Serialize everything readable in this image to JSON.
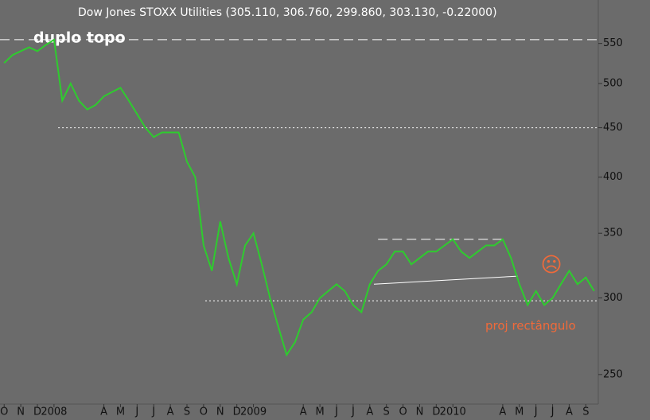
{
  "chart_data": {
    "type": "line",
    "title": "Dow Jones STOXX Utilities (305.110, 306.760, 299.860, 303.130, -0.22000)",
    "annotations": [
      "duplo topo",
      "proj rectângulo",
      "☹"
    ],
    "log_scale": true,
    "ylim": [
      233,
      610
    ],
    "yticks": [
      250,
      300,
      350,
      400,
      450,
      500,
      550
    ],
    "xlim": [
      0,
      72
    ],
    "xticks": [
      {
        "value": 0.5,
        "label": "O"
      },
      {
        "value": 2.5,
        "label": "N"
      },
      {
        "value": 4.5,
        "label": "D"
      },
      {
        "value": 6.5,
        "label": "2008"
      },
      {
        "value": 12.5,
        "label": "A"
      },
      {
        "value": 14.5,
        "label": "M"
      },
      {
        "value": 16.5,
        "label": "J"
      },
      {
        "value": 18.5,
        "label": "J"
      },
      {
        "value": 20.5,
        "label": "A"
      },
      {
        "value": 22.5,
        "label": "S"
      },
      {
        "value": 24.5,
        "label": "O"
      },
      {
        "value": 26.5,
        "label": "N"
      },
      {
        "value": 28.5,
        "label": "D"
      },
      {
        "value": 30.5,
        "label": "2009"
      },
      {
        "value": 36.5,
        "label": "A"
      },
      {
        "value": 38.5,
        "label": "M"
      },
      {
        "value": 40.5,
        "label": "J"
      },
      {
        "value": 42.5,
        "label": "J"
      },
      {
        "value": 44.5,
        "label": "A"
      },
      {
        "value": 46.5,
        "label": "S"
      },
      {
        "value": 48.5,
        "label": "O"
      },
      {
        "value": 50.5,
        "label": "N"
      },
      {
        "value": 52.5,
        "label": "D"
      },
      {
        "value": 54.5,
        "label": "2010"
      },
      {
        "value": 60.5,
        "label": "A"
      },
      {
        "value": 62.5,
        "label": "M"
      },
      {
        "value": 64.5,
        "label": "J"
      },
      {
        "value": 66.5,
        "label": "J"
      },
      {
        "value": 68.5,
        "label": "A"
      },
      {
        "value": 70.5,
        "label": "S"
      }
    ],
    "series": [
      {
        "name": "Dow Jones STOXX Utilities",
        "color": "#2ecc2e",
        "values": [
          525,
          535,
          540,
          545,
          540,
          548,
          555,
          480,
          500,
          480,
          470,
          475,
          485,
          490,
          495,
          480,
          465,
          450,
          440,
          445,
          445,
          445,
          415,
          400,
          340,
          320,
          360,
          330,
          310,
          340,
          350,
          325,
          300,
          280,
          262,
          270,
          285,
          290,
          300,
          305,
          310,
          305,
          295,
          290,
          310,
          320,
          325,
          335,
          335,
          325,
          330,
          335,
          335,
          340,
          345,
          335,
          330,
          335,
          340,
          340,
          345,
          330,
          310,
          295,
          305,
          295,
          300,
          310,
          320,
          310,
          315,
          305
        ]
      }
    ],
    "lines": [
      {
        "x1": 0,
        "x2": 72,
        "y1": 555,
        "y2": 555,
        "style": "dashed"
      },
      {
        "x1": 7,
        "x2": 72,
        "y1": 450,
        "y2": 450,
        "style": "dotted"
      },
      {
        "x1": 24.7,
        "x2": 72,
        "y1": 298,
        "y2": 298,
        "style": "dotted"
      },
      {
        "x1": 45.5,
        "x2": 61,
        "y1": 345,
        "y2": 345,
        "style": "dashed"
      },
      {
        "x1": 45,
        "x2": 62.3,
        "y1": 310,
        "y2": 316,
        "style": "solid"
      }
    ]
  }
}
